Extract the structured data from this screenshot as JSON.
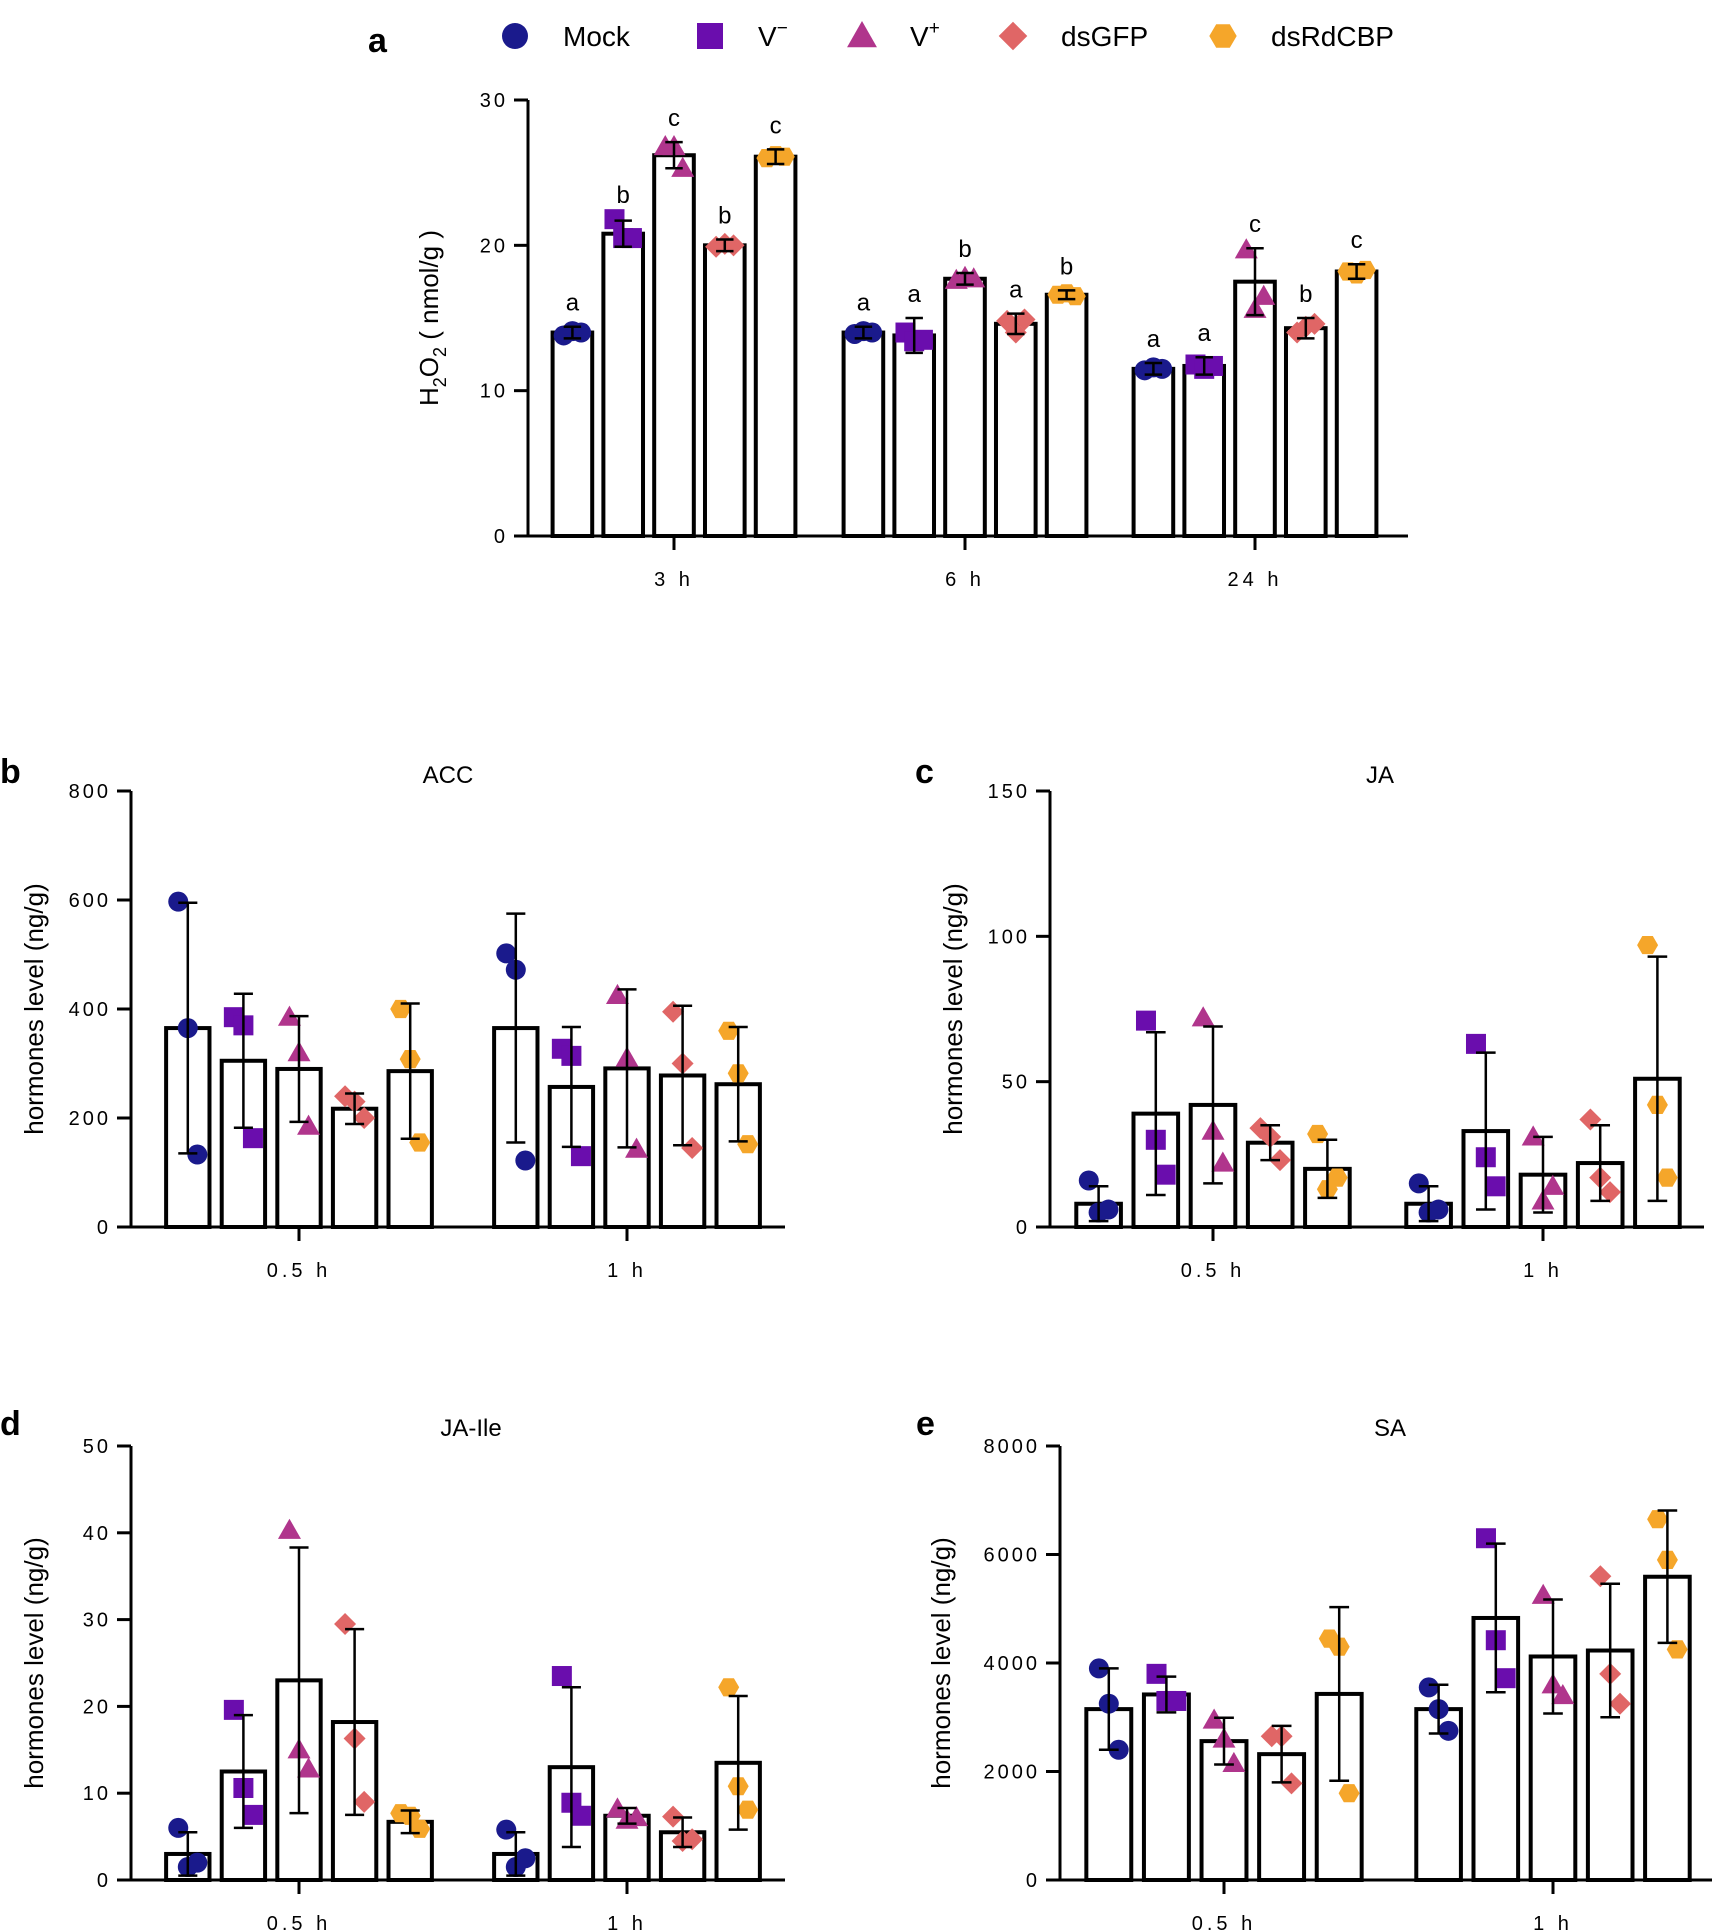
{
  "legend": {
    "entries": [
      {
        "label": "Mock",
        "marker": "circle",
        "color": "#1a1a8c"
      },
      {
        "label": "V-",
        "marker": "square",
        "color": "#6a0dad"
      },
      {
        "label": "V+",
        "marker": "triangle",
        "color": "#b0358c"
      },
      {
        "label": "dsGFP",
        "marker": "diamond",
        "color": "#e06666"
      },
      {
        "label": "dsRdCBP",
        "marker": "hexagon",
        "color": "#f5a62a"
      }
    ]
  },
  "chart_data": [
    {
      "id": "a",
      "panel_letter": "a",
      "type": "bar",
      "title": "",
      "ylabel": "H2O2 ( nmol/g )",
      "ylim": [
        0,
        30
      ],
      "yticks": [
        0,
        10,
        20,
        30
      ],
      "categories": [
        "3 h",
        "6 h",
        "24 h"
      ],
      "series": [
        {
          "name": "Mock",
          "means": [
            14.0,
            14.0,
            11.5
          ],
          "errors": [
            0.4,
            0.4,
            0.4
          ],
          "points": [
            [
              13.8,
              14.1,
              14.0
            ],
            [
              13.9,
              14.1,
              14.0
            ],
            [
              11.4,
              11.6,
              11.5
            ]
          ],
          "sig": [
            "a",
            "a",
            "a"
          ]
        },
        {
          "name": "V-",
          "means": [
            20.8,
            13.8,
            11.7
          ],
          "errors": [
            0.9,
            1.2,
            0.6
          ],
          "points": [
            [
              21.8,
              20.5,
              20.5
            ],
            [
              14.0,
              13.4,
              13.5
            ],
            [
              11.8,
              11.5,
              11.7
            ]
          ],
          "sig": [
            "b",
            "a",
            "a"
          ]
        },
        {
          "name": "V+",
          "means": [
            26.2,
            17.7,
            17.5
          ],
          "errors": [
            0.9,
            0.4,
            2.3
          ],
          "points": [
            [
              26.8,
              26.8,
              25.3
            ],
            [
              17.6,
              17.8,
              17.7
            ],
            [
              19.7,
              15.6,
              16.5
            ]
          ],
          "sig": [
            "c",
            "b",
            "c"
          ]
        },
        {
          "name": "dsGFP",
          "means": [
            20.0,
            14.6,
            14.3
          ],
          "errors": [
            0.4,
            0.7,
            0.7
          ],
          "points": [
            [
              19.9,
              20.1,
              20.0
            ],
            [
              14.8,
              14.0,
              14.9
            ],
            [
              14.0,
              14.4,
              14.6
            ]
          ],
          "sig": [
            "b",
            "a",
            "b"
          ]
        },
        {
          "name": "dsRdCBP",
          "means": [
            26.1,
            16.6,
            18.2
          ],
          "errors": [
            0.5,
            0.3,
            0.5
          ],
          "points": [
            [
              26.0,
              26.2,
              26.1
            ],
            [
              16.6,
              16.7,
              16.5
            ],
            [
              18.2,
              18.0,
              18.3
            ]
          ],
          "sig": [
            "c",
            "b",
            "c"
          ]
        }
      ]
    },
    {
      "id": "b",
      "panel_letter": "b",
      "type": "bar",
      "title": "ACC",
      "ylabel": "hormones level (ng/g)",
      "ylim": [
        0,
        800
      ],
      "yticks": [
        0,
        200,
        400,
        600,
        800
      ],
      "categories": [
        "0.5 h",
        "1 h"
      ],
      "series": [
        {
          "name": "Mock",
          "means": [
            365,
            365
          ],
          "errors": [
            230,
            210
          ],
          "points": [
            [
              597,
              365,
              133
            ],
            [
              502,
              472,
              122
            ]
          ]
        },
        {
          "name": "V-",
          "means": [
            305,
            257
          ],
          "errors": [
            123,
            110
          ],
          "points": [
            [
              385,
              370,
              163
            ],
            [
              327,
              314,
              130
            ]
          ]
        },
        {
          "name": "V+",
          "means": [
            290,
            291
          ],
          "errors": [
            97,
            145
          ],
          "points": [
            [
              385,
              320,
              185
            ],
            [
              425,
              310,
              143
            ]
          ]
        },
        {
          "name": "dsGFP",
          "means": [
            217,
            278
          ],
          "errors": [
            28,
            128
          ],
          "points": [
            [
              240,
              230,
              200
            ],
            [
              395,
              300,
              145
            ]
          ]
        },
        {
          "name": "dsRdCBP",
          "means": [
            286,
            262
          ],
          "errors": [
            124,
            105
          ],
          "points": [
            [
              400,
              308,
              155
            ],
            [
              360,
              282,
              152
            ]
          ]
        }
      ]
    },
    {
      "id": "c",
      "panel_letter": "c",
      "type": "bar",
      "title": "JA",
      "ylabel": "hormones level (ng/g)",
      "ylim": [
        0,
        150
      ],
      "yticks": [
        0,
        50,
        100,
        150
      ],
      "categories": [
        "0.5 h",
        "1 h"
      ],
      "series": [
        {
          "name": "Mock",
          "means": [
            8,
            8
          ],
          "errors": [
            6,
            6
          ],
          "points": [
            [
              16,
              5,
              6
            ],
            [
              15,
              5,
              6
            ]
          ]
        },
        {
          "name": "V-",
          "means": [
            39,
            33
          ],
          "errors": [
            28,
            27
          ],
          "points": [
            [
              71,
              30,
              18
            ],
            [
              63,
              24,
              14
            ]
          ]
        },
        {
          "name": "V+",
          "means": [
            42,
            18
          ],
          "errors": [
            27,
            13
          ],
          "points": [
            [
              72,
              33,
              22
            ],
            [
              31,
              9,
              14
            ]
          ]
        },
        {
          "name": "dsGFP",
          "means": [
            29,
            22
          ],
          "errors": [
            6,
            13
          ],
          "points": [
            [
              34,
              31,
              23
            ],
            [
              37,
              17,
              12
            ]
          ]
        },
        {
          "name": "dsRdCBP",
          "means": [
            20,
            51
          ],
          "errors": [
            10,
            42
          ],
          "points": [
            [
              32,
              13,
              17
            ],
            [
              97,
              42,
              17
            ]
          ]
        }
      ]
    },
    {
      "id": "d",
      "panel_letter": "d",
      "type": "bar",
      "title": "JA-Ile",
      "ylabel": "hormones level (ng/g)",
      "ylim": [
        0,
        50
      ],
      "yticks": [
        0,
        10,
        20,
        30,
        40,
        50
      ],
      "categories": [
        "0.5 h",
        "1 h"
      ],
      "series": [
        {
          "name": "Mock",
          "means": [
            3.0,
            3.0
          ],
          "errors": [
            2.5,
            2.5
          ],
          "points": [
            [
              6.0,
              1.5,
              2.0
            ],
            [
              5.8,
              1.5,
              2.5
            ]
          ]
        },
        {
          "name": "V-",
          "means": [
            12.5,
            13.0
          ],
          "errors": [
            6.5,
            9.2
          ],
          "points": [
            [
              19.6,
              10.6,
              7.5
            ],
            [
              23.5,
              8.9,
              7.4
            ]
          ]
        },
        {
          "name": "V+",
          "means": [
            23.0,
            7.4
          ],
          "errors": [
            15.3,
            0.9
          ],
          "points": [
            [
              40.3,
              15.0,
              12.8
            ],
            [
              8.2,
              6.9,
              7.2
            ]
          ]
        },
        {
          "name": "dsGFP",
          "means": [
            18.2,
            5.5
          ],
          "errors": [
            10.7,
            1.7
          ],
          "points": [
            [
              29.5,
              16.3,
              9.0
            ],
            [
              7.3,
              4.5,
              4.7
            ]
          ]
        },
        {
          "name": "dsRdCBP",
          "means": [
            6.7,
            13.5
          ],
          "errors": [
            1.3,
            7.7
          ],
          "points": [
            [
              7.7,
              7.4,
              5.9
            ],
            [
              22.2,
              10.8,
              8.1
            ]
          ]
        }
      ]
    },
    {
      "id": "e",
      "panel_letter": "e",
      "type": "bar",
      "title": "SA",
      "ylabel": "hormones level (ng/g)",
      "ylim": [
        0,
        8000
      ],
      "yticks": [
        0,
        2000,
        4000,
        6000,
        8000
      ],
      "categories": [
        "0.5 h",
        "1 h"
      ],
      "series": [
        {
          "name": "Mock",
          "means": [
            3150,
            3150
          ],
          "errors": [
            750,
            450
          ],
          "points": [
            [
              3900,
              3250,
              2400
            ],
            [
              3550,
              3150,
              2750
            ]
          ]
        },
        {
          "name": "V-",
          "means": [
            3420,
            4830
          ],
          "errors": [
            330,
            1370
          ],
          "points": [
            [
              3800,
              3300,
              3300
            ],
            [
              6300,
              4420,
              3720
            ]
          ]
        },
        {
          "name": "V+",
          "means": [
            2560,
            4120
          ],
          "errors": [
            430,
            1050
          ],
          "points": [
            [
              2950,
              2600,
              2150
            ],
            [
              5250,
              3600,
              3400
            ]
          ]
        },
        {
          "name": "dsGFP",
          "means": [
            2320,
            4230
          ],
          "errors": [
            520,
            1230
          ],
          "points": [
            [
              2650,
              2650,
              1780
            ],
            [
              5600,
              3800,
              3250
            ]
          ]
        },
        {
          "name": "dsRdCBP",
          "means": [
            3430,
            5590
          ],
          "errors": [
            1600,
            1220
          ],
          "points": [
            [
              4450,
              4300,
              1600
            ],
            [
              6650,
              5900,
              4250
            ]
          ]
        }
      ]
    }
  ]
}
